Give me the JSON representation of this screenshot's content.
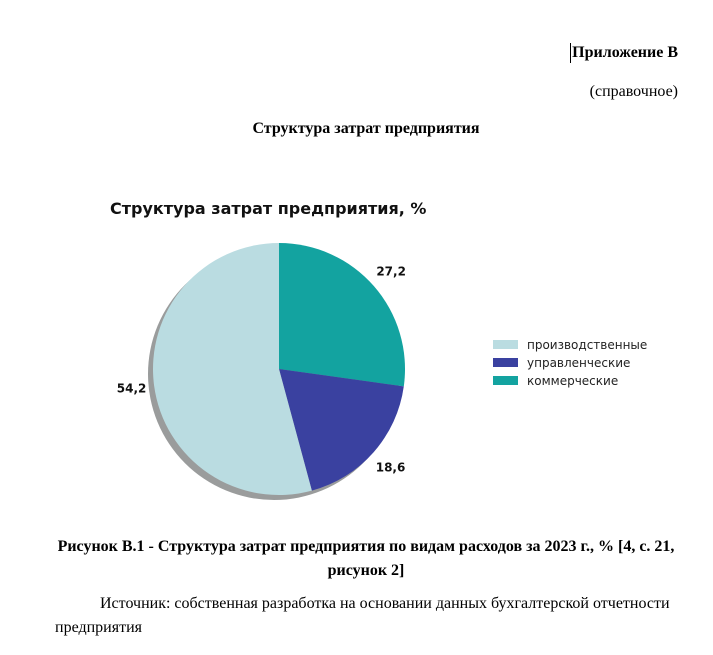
{
  "document": {
    "appendix_title": "Приложение В",
    "appendix_note": "(справочное)",
    "section_title": "Структура затрат предприятия",
    "figure_caption": "Рисунок В.1 - Структура затрат предприятия по видам расходов за 2023 г., % [4, с. 21, рисунок 2]",
    "source_text": "Источник: собственная разработка на основании данных бухгалтерской отчетности предприятия"
  },
  "chart_data": {
    "type": "pie",
    "title": "Структура затрат предприятия, %",
    "legend_position": "right",
    "slices": [
      {
        "name": "коммерческие",
        "value": 27.2,
        "label": "27,2",
        "color": "#13a3a0"
      },
      {
        "name": "управленческие",
        "value": 18.6,
        "label": "18,6",
        "color": "#3a41a0"
      },
      {
        "name": "производственные",
        "value": 54.2,
        "label": "54,2",
        "color": "#badce1"
      }
    ],
    "legend": [
      {
        "name": "производственные",
        "color": "#badce1"
      },
      {
        "name": "управленческие",
        "color": "#3a41a0"
      },
      {
        "name": "коммерческие",
        "color": "#13a3a0"
      }
    ],
    "shadow": true
  }
}
